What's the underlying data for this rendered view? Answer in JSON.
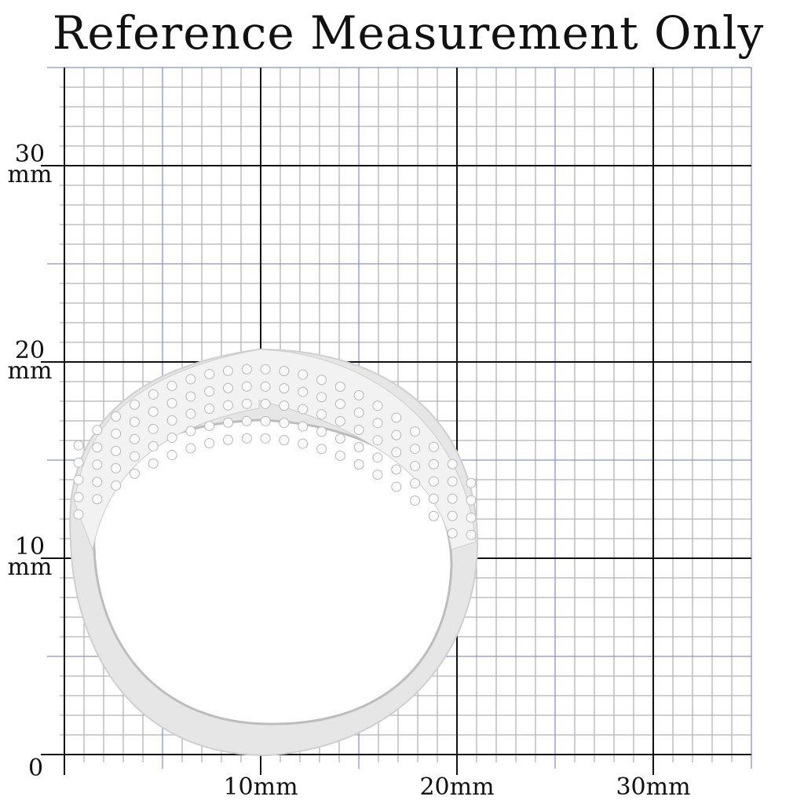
{
  "title": "Reference Measurement Only",
  "y_labels": [
    {
      "value": "30",
      "unit": "mm"
    },
    {
      "value": "20",
      "unit": "mm"
    },
    {
      "value": "10",
      "unit": "mm"
    }
  ],
  "origin_label": "0",
  "x_labels": [
    "10mm",
    "20mm",
    "30mm"
  ],
  "grid": {
    "extent_mm": 35,
    "minor_mm": 1,
    "mid_mm": 5,
    "major_mm": 10,
    "minor_color": "#b4b4b4",
    "mid_color": "#8a8fd8",
    "major_color": "#111111"
  },
  "product": "ring-image"
}
